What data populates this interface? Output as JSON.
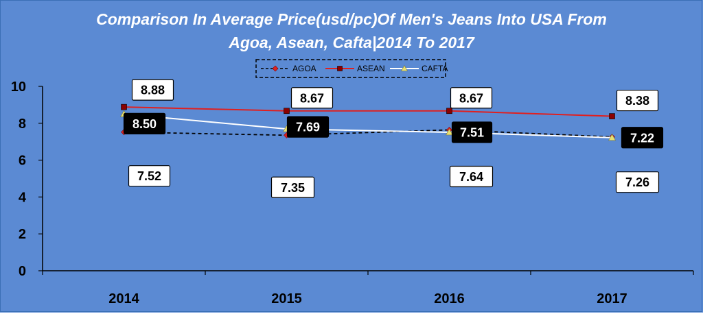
{
  "chart_data": {
    "type": "line",
    "title_lines": [
      "Comparison In Average Price(usd/pc)Of Men's Jeans Into USA From",
      "Agoa, Asean, Cafta|2014 To 2017"
    ],
    "categories": [
      "2014",
      "2015",
      "2016",
      "2017"
    ],
    "ylim": [
      0,
      10
    ],
    "yticks": [
      "0",
      "2",
      "4",
      "6",
      "8",
      "10"
    ],
    "grid": false,
    "legend_position": "top",
    "series": [
      {
        "name": "AGOA",
        "values": [
          7.52,
          7.35,
          7.64,
          7.26
        ],
        "labels": [
          "7.52",
          "7.35",
          "7.64",
          "7.26"
        ],
        "color": "#000000",
        "marker_color": "#dd2222",
        "line_style": "dashed",
        "marker": "diamond"
      },
      {
        "name": "ASEAN",
        "values": [
          8.88,
          8.67,
          8.67,
          8.38
        ],
        "labels": [
          "8.88",
          "8.67",
          "8.67",
          "8.38"
        ],
        "color": "#e02020",
        "marker_color": "#8b0000",
        "line_style": "solid",
        "marker": "square"
      },
      {
        "name": "CAFTA",
        "values": [
          8.5,
          7.69,
          7.51,
          7.22
        ],
        "labels": [
          "8.50",
          "7.69",
          "7.51",
          "7.22"
        ],
        "color": "#ffffff",
        "marker_color": "#e8e070",
        "line_style": "solid",
        "marker": "triangle"
      }
    ]
  },
  "colors": {
    "background": "#5b8ad3",
    "axis": "#000000"
  }
}
